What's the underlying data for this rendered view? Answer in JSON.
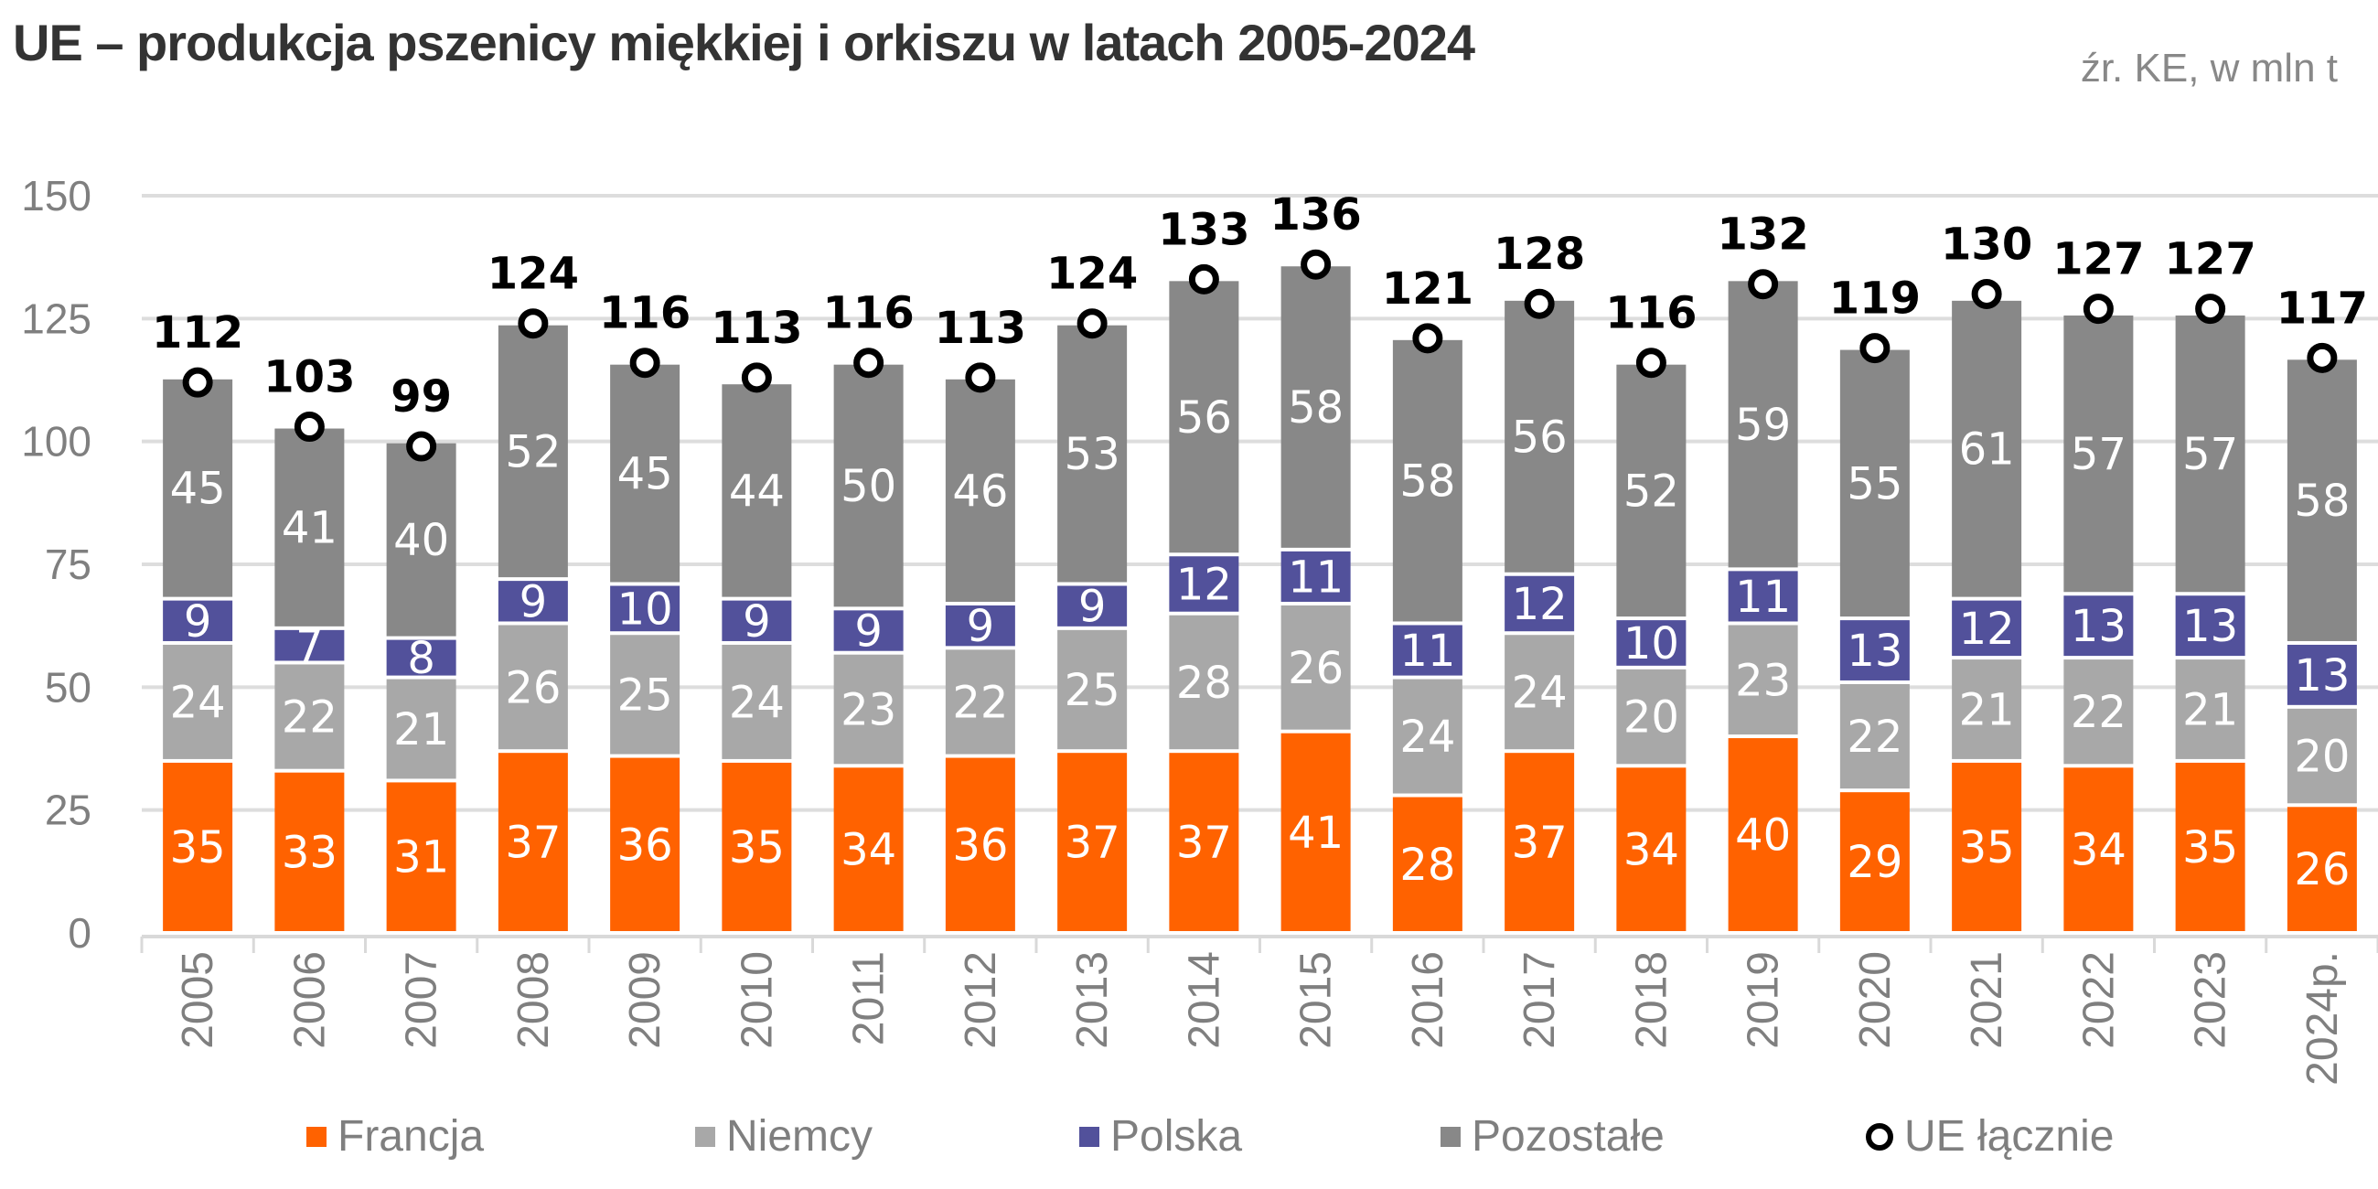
{
  "chart_data": {
    "type": "bar",
    "stacked": true,
    "title": "UE – produkcja pszenicy miękkiej i orkiszu w latach 2005-2024",
    "subtitle": "źr. KE, w mln t",
    "xlabel": "",
    "ylabel": "",
    "ylim": [
      0,
      150
    ],
    "yticks": [
      0,
      25,
      50,
      75,
      100,
      125,
      150
    ],
    "grid": true,
    "legend_position": "bottom",
    "categories": [
      "2005",
      "2006",
      "2007",
      "2008",
      "2009",
      "2010",
      "2011",
      "2012",
      "2013",
      "2014",
      "2015",
      "2016",
      "2017",
      "2018",
      "2019",
      "2020",
      "2021",
      "2022",
      "2023",
      "2024p."
    ],
    "series": [
      {
        "name": "Francja",
        "color": "#ff6200",
        "label_color": "#ffffff",
        "values": [
          35,
          33,
          31,
          37,
          36,
          35,
          34,
          36,
          37,
          37,
          41,
          28,
          37,
          34,
          40,
          29,
          35,
          34,
          35,
          26
        ]
      },
      {
        "name": "Niemcy",
        "color": "#a8a8a8",
        "label_color": "#ffffff",
        "values": [
          24,
          22,
          21,
          26,
          25,
          24,
          23,
          22,
          25,
          28,
          26,
          24,
          24,
          20,
          23,
          22,
          21,
          22,
          21,
          20
        ]
      },
      {
        "name": "Polska",
        "color": "#52519b",
        "label_color": "#ffffff",
        "values": [
          9,
          7,
          8,
          9,
          10,
          9,
          9,
          9,
          9,
          12,
          11,
          11,
          12,
          10,
          11,
          13,
          12,
          13,
          13,
          13
        ]
      },
      {
        "name": "Pozostałe",
        "color": "#888888",
        "label_color": "#ffffff",
        "values": [
          45,
          41,
          40,
          52,
          45,
          44,
          50,
          46,
          53,
          56,
          58,
          58,
          56,
          52,
          59,
          55,
          61,
          57,
          57,
          58
        ]
      }
    ],
    "total": {
      "name": "UE łącznie",
      "marker": "ring",
      "color": "#000000",
      "values": [
        112,
        103,
        99,
        124,
        116,
        113,
        116,
        113,
        124,
        133,
        136,
        121,
        128,
        116,
        132,
        119,
        130,
        127,
        127,
        117
      ]
    }
  }
}
